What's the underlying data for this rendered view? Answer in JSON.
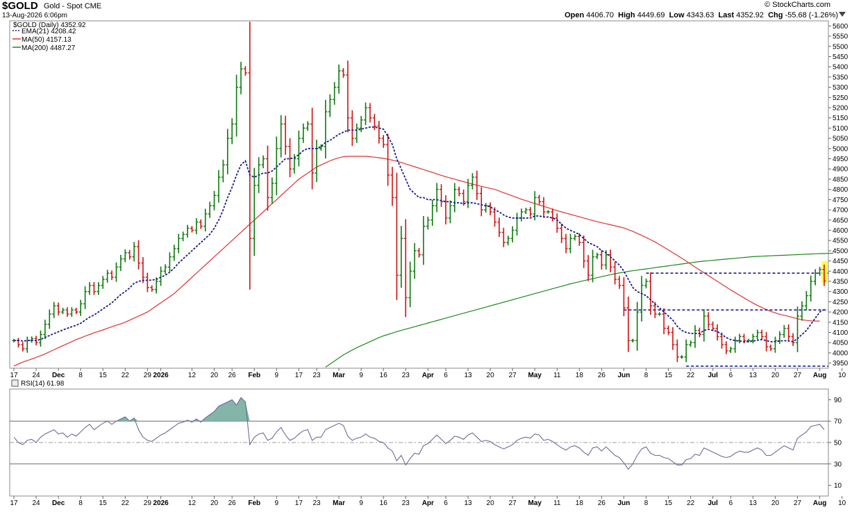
{
  "header": {
    "symbol": "$GOLD",
    "description": "Gold - Spot  CME",
    "date": "13-Aug-2026 6:06pm",
    "brand": "© StockCharts.com",
    "open_label": "Open",
    "open": "4406.70",
    "high_label": "High",
    "high": "4449.69",
    "low_label": "Low",
    "low": "4343.63",
    "last_label": "Last",
    "last": "4352.92",
    "chg_label": "Chg",
    "chg": "-55.68 (-1.26%)"
  },
  "legend": {
    "main": "$GOLD (Daily) 4352.92",
    "ema": "EMA(21) 4208.42",
    "ma50": "MA(50) 4157.13",
    "ma200": "MA(200) 4487.27",
    "rsi": "RSI(14) 61.98"
  },
  "colors": {
    "up": "#0a7a0a",
    "down": "#d01010",
    "ema": "#1a1a8c",
    "ma50": "#e03030",
    "ma200": "#1a8a1a",
    "rsi_line": "#6a6a9a",
    "rsi_fill": "#6fa89a",
    "hline": "#1a1a8c",
    "highlight": "#ffff40"
  },
  "chart_data": [
    {
      "type": "ohlc",
      "title": "$GOLD (Daily)",
      "ylim": [
        3925,
        5625
      ],
      "y_ticks": [
        3950,
        4000,
        4050,
        4100,
        4150,
        4200,
        4250,
        4300,
        4350,
        4400,
        4450,
        4500,
        4550,
        4600,
        4650,
        4700,
        4750,
        4800,
        4850,
        4900,
        4950,
        5000,
        5050,
        5100,
        5150,
        5200,
        5250,
        5300,
        5350,
        5400,
        5450,
        5500,
        5550,
        5600
      ],
      "x_labels": [
        {
          "label": "17",
          "i": 0
        },
        {
          "label": "24",
          "i": 5
        },
        {
          "label": "Dec",
          "i": 10
        },
        {
          "label": "8",
          "i": 15
        },
        {
          "label": "15",
          "i": 20
        },
        {
          "label": "22",
          "i": 25
        },
        {
          "label": "29",
          "i": 30
        },
        {
          "label": "2026",
          "i": 33
        },
        {
          "label": "12",
          "i": 40
        },
        {
          "label": "20",
          "i": 45
        },
        {
          "label": "26",
          "i": 49
        },
        {
          "label": "Feb",
          "i": 54
        },
        {
          "label": "9",
          "i": 59
        },
        {
          "label": "17",
          "i": 64
        },
        {
          "label": "23",
          "i": 68
        },
        {
          "label": "Mar",
          "i": 73
        },
        {
          "label": "9",
          "i": 78
        },
        {
          "label": "16",
          "i": 83
        },
        {
          "label": "23",
          "i": 88
        },
        {
          "label": "Apr",
          "i": 93
        },
        {
          "label": "6",
          "i": 97
        },
        {
          "label": "13",
          "i": 102
        },
        {
          "label": "20",
          "i": 107
        },
        {
          "label": "27",
          "i": 112
        },
        {
          "label": "May",
          "i": 117
        },
        {
          "label": "11",
          "i": 122
        },
        {
          "label": "18",
          "i": 127
        },
        {
          "label": "26",
          "i": 132
        },
        {
          "label": "Jun",
          "i": 137
        },
        {
          "label": "8",
          "i": 142
        },
        {
          "label": "15",
          "i": 147
        },
        {
          "label": "22",
          "i": 152
        },
        {
          "label": "Jul",
          "i": 157
        },
        {
          "label": "6",
          "i": 161
        },
        {
          "label": "13",
          "i": 166
        },
        {
          "label": "20",
          "i": 171
        },
        {
          "label": "27",
          "i": 176
        },
        {
          "label": "Aug",
          "i": 181
        },
        {
          "label": "10",
          "i": 186
        }
      ],
      "closes": [
        4060,
        4040,
        4020,
        4060,
        4070,
        4050,
        4090,
        4140,
        4190,
        4230,
        4200,
        4210,
        4190,
        4210,
        4200,
        4240,
        4300,
        4330,
        4300,
        4330,
        4360,
        4390,
        4370,
        4420,
        4460,
        4490,
        4470,
        4520,
        4440,
        4370,
        4320,
        4310,
        4350,
        4400,
        4420,
        4470,
        4510,
        4560,
        4580,
        4610,
        4600,
        4640,
        4620,
        4680,
        4720,
        4770,
        4860,
        4920,
        5050,
        5120,
        5300,
        5390,
        5370,
        4560,
        4820,
        4920,
        4950,
        4760,
        4830,
        5000,
        5120,
        5010,
        4900,
        4950,
        5050,
        5100,
        5120,
        4880,
        5000,
        5010,
        5180,
        5240,
        5300,
        5380,
        5360,
        5150,
        5050,
        5100,
        5140,
        5200,
        5150,
        5110,
        5050,
        5020,
        4870,
        4760,
        4380,
        4560,
        4270,
        4400,
        4500,
        4480,
        4620,
        4650,
        4720,
        4800,
        4740,
        4660,
        4720,
        4800,
        4780,
        4740,
        4820,
        4860,
        4780,
        4700,
        4720,
        4690,
        4640,
        4590,
        4540,
        4560,
        4600,
        4660,
        4690,
        4700,
        4680,
        4760,
        4740,
        4690,
        4690,
        4660,
        4610,
        4560,
        4510,
        4560,
        4570,
        4540,
        4450,
        4380,
        4470,
        4480,
        4430,
        4480,
        4420,
        4360,
        4330,
        4220,
        4060,
        4060,
        4200,
        4330,
        4350,
        4230,
        4190,
        4190,
        4120,
        4100,
        4040,
        3980,
        3980,
        4040,
        4050,
        4110,
        4090,
        4180,
        4140,
        4120,
        4080,
        4040,
        4010,
        4020,
        4060,
        4080,
        4060,
        4060,
        4080,
        4100,
        4080,
        4030,
        4020,
        4060,
        4090,
        4120,
        4080,
        4050,
        4180,
        4230,
        4280,
        4350,
        4390,
        4408,
        4352
      ],
      "ema21": [
        4060,
        4061,
        4058,
        4060,
        4062,
        4060,
        4066,
        4075,
        4085,
        4094,
        4103,
        4112,
        4120,
        4128,
        4135,
        4145,
        4160,
        4175,
        4185,
        4200,
        4215,
        4230,
        4245,
        4265,
        4285,
        4300,
        4318,
        4340,
        4350,
        4355,
        4355,
        4356,
        4360,
        4370,
        4380,
        4395,
        4415,
        4440,
        4460,
        4480,
        4500,
        4520,
        4540,
        4560,
        4580,
        4610,
        4650,
        4700,
        4760,
        4810,
        4870,
        4920,
        4940,
        4870,
        4860,
        4870,
        4880,
        4880,
        4890,
        4910,
        4930,
        4950,
        4950,
        4955,
        4970,
        4990,
        5000,
        5000,
        5000,
        5010,
        5030,
        5040,
        5055,
        5070,
        5080,
        5090,
        5090,
        5090,
        5095,
        5100,
        5105,
        5105,
        5100,
        5095,
        5060,
        5020,
        4950,
        4900,
        4850,
        4800,
        4780,
        4760,
        4760,
        4750,
        4750,
        4750,
        4745,
        4740,
        4740,
        4735,
        4735,
        4730,
        4735,
        4735,
        4730,
        4725,
        4720,
        4715,
        4700,
        4690,
        4675,
        4665,
        4660,
        4660,
        4660,
        4660,
        4660,
        4670,
        4670,
        4665,
        4665,
        4660,
        4650,
        4630,
        4610,
        4600,
        4590,
        4580,
        4560,
        4540,
        4530,
        4520,
        4500,
        4490,
        4470,
        4450,
        4430,
        4400,
        4360,
        4320,
        4300,
        4290,
        4280,
        4260,
        4240,
        4220,
        4200,
        4180,
        4160,
        4130,
        4110,
        4100,
        4095,
        4095,
        4095,
        4110,
        4115,
        4110,
        4105,
        4090,
        4075,
        4065,
        4060,
        4058,
        4055,
        4055,
        4058,
        4062,
        4065,
        4060,
        4055,
        4055,
        4058,
        4060,
        4058,
        4055,
        4070,
        4090,
        4110,
        4140,
        4170,
        4200,
        4212
      ],
      "ma50": [
        3935,
        3945,
        3955,
        3962,
        3970,
        3978,
        3986,
        3995,
        4005,
        4015,
        4025,
        4035,
        4045,
        4055,
        4065,
        4073,
        4082,
        4090,
        4098,
        4105,
        4112,
        4120,
        4128,
        4135,
        4142,
        4150,
        4160,
        4170,
        4180,
        4190,
        4200,
        4215,
        4230,
        4245,
        4260,
        4275,
        4290,
        4310,
        4330,
        4350,
        4370,
        4390,
        4410,
        4430,
        4450,
        4470,
        4490,
        4510,
        4530,
        4550,
        4570,
        4590,
        4610,
        4630,
        4650,
        4670,
        4690,
        4710,
        4730,
        4750,
        4770,
        4790,
        4810,
        4830,
        4850,
        4865,
        4880,
        4895,
        4910,
        4920,
        4930,
        4940,
        4948,
        4955,
        4960,
        4962,
        4962,
        4962,
        4962,
        4962,
        4960,
        4958,
        4955,
        4952,
        4948,
        4943,
        4938,
        4932,
        4925,
        4918,
        4911,
        4904,
        4897,
        4890,
        4883,
        4876,
        4869,
        4862,
        4856,
        4850,
        4844,
        4838,
        4832,
        4826,
        4820,
        4815,
        4810,
        4805,
        4800,
        4792,
        4784,
        4776,
        4768,
        4760,
        4752,
        4745,
        4738,
        4731,
        4724,
        4717,
        4710,
        4703,
        4696,
        4690,
        4684,
        4678,
        4672,
        4666,
        4660,
        4654,
        4648,
        4642,
        4637,
        4632,
        4627,
        4622,
        4617,
        4611,
        4603,
        4595,
        4585,
        4575,
        4565,
        4554,
        4543,
        4530,
        4517,
        4504,
        4490,
        4477,
        4463,
        4449,
        4435,
        4420,
        4406,
        4392,
        4378,
        4364,
        4350,
        4336,
        4322,
        4308,
        4295,
        4282,
        4269,
        4256,
        4244,
        4232,
        4222,
        4212,
        4203,
        4196,
        4189,
        4184,
        4179,
        4173,
        4167,
        4162,
        4159,
        4157,
        4156,
        4156
      ],
      "ma200": [
        null,
        null,
        null,
        null,
        null,
        null,
        null,
        null,
        null,
        null,
        null,
        null,
        null,
        null,
        null,
        null,
        null,
        null,
        null,
        null,
        null,
        null,
        null,
        null,
        null,
        null,
        null,
        null,
        null,
        null,
        null,
        null,
        null,
        null,
        null,
        null,
        null,
        null,
        null,
        null,
        null,
        null,
        null,
        null,
        null,
        null,
        null,
        null,
        null,
        null,
        null,
        null,
        null,
        null,
        null,
        null,
        null,
        null,
        null,
        null,
        null,
        null,
        null,
        null,
        null,
        null,
        null,
        null,
        null,
        null,
        3930,
        3945,
        3960,
        3975,
        3990,
        4002,
        4014,
        4025,
        4035,
        4045,
        4055,
        4065,
        4075,
        4083,
        4090,
        4097,
        4104,
        4110,
        4116,
        4122,
        4128,
        4134,
        4140,
        4146,
        4152,
        4158,
        4164,
        4170,
        4176,
        4182,
        4188,
        4194,
        4200,
        4206,
        4212,
        4218,
        4224,
        4230,
        4236,
        4242,
        4248,
        4254,
        4260,
        4266,
        4272,
        4278,
        4284,
        4290,
        4296,
        4302,
        4308,
        4314,
        4320,
        4326,
        4332,
        4338,
        4343,
        4348,
        4353,
        4358,
        4363,
        4368,
        4373,
        4378,
        4383,
        4387,
        4391,
        4395,
        4399,
        4402,
        4405,
        4408,
        4411,
        4414,
        4417,
        4420,
        4423,
        4426,
        4429,
        4432,
        4435,
        4438,
        4441,
        4444,
        4447,
        4449,
        4451,
        4453,
        4455,
        4457,
        4459,
        4461,
        4463,
        4465,
        4467,
        4469,
        4471,
        4472,
        4473,
        4474,
        4475,
        4476,
        4477,
        4478,
        4479,
        4480,
        4481,
        4482,
        4483,
        4484,
        4485,
        4486,
        4486,
        4487,
        4487
      ],
      "resistance_levels": [
        4390,
        4210
      ],
      "support_level": 3935,
      "last_price_marker": 4352.92
    },
    {
      "type": "line",
      "title": "RSI(14)",
      "ylim": [
        0,
        100
      ],
      "y_ticks": [
        10,
        30,
        50,
        70,
        90
      ],
      "overbought": 70,
      "oversold": 30,
      "values": [
        55,
        50,
        48,
        52,
        53,
        50,
        55,
        58,
        60,
        62,
        58,
        59,
        55,
        58,
        56,
        60,
        64,
        67,
        62,
        65,
        68,
        70,
        67,
        70,
        72,
        74,
        70,
        73,
        62,
        55,
        52,
        51,
        54,
        57,
        59,
        62,
        65,
        68,
        69,
        71,
        69,
        72,
        69,
        73,
        76,
        79,
        84,
        86,
        88,
        90,
        85,
        92,
        88,
        48,
        55,
        58,
        59,
        52,
        54,
        60,
        64,
        57,
        52,
        54,
        58,
        61,
        62,
        52,
        55,
        55,
        62,
        64,
        66,
        68,
        66,
        56,
        52,
        54,
        55,
        58,
        55,
        54,
        51,
        50,
        45,
        42,
        33,
        38,
        29,
        35,
        40,
        39,
        47,
        49,
        53,
        57,
        53,
        49,
        52,
        56,
        55,
        53,
        57,
        59,
        55,
        51,
        52,
        51,
        48,
        46,
        44,
        46,
        48,
        52,
        54,
        55,
        54,
        58,
        57,
        52,
        53,
        51,
        48,
        45,
        43,
        46,
        47,
        45,
        41,
        38,
        45,
        46,
        42,
        46,
        42,
        38,
        36,
        31,
        25,
        30,
        38,
        44,
        46,
        40,
        38,
        38,
        36,
        35,
        32,
        29,
        29,
        34,
        35,
        39,
        38,
        45,
        43,
        41,
        39,
        37,
        36,
        37,
        40,
        42,
        41,
        41,
        43,
        45,
        43,
        38,
        38,
        41,
        44,
        47,
        45,
        43,
        54,
        57,
        60,
        65,
        66,
        67,
        62
      ]
    }
  ]
}
